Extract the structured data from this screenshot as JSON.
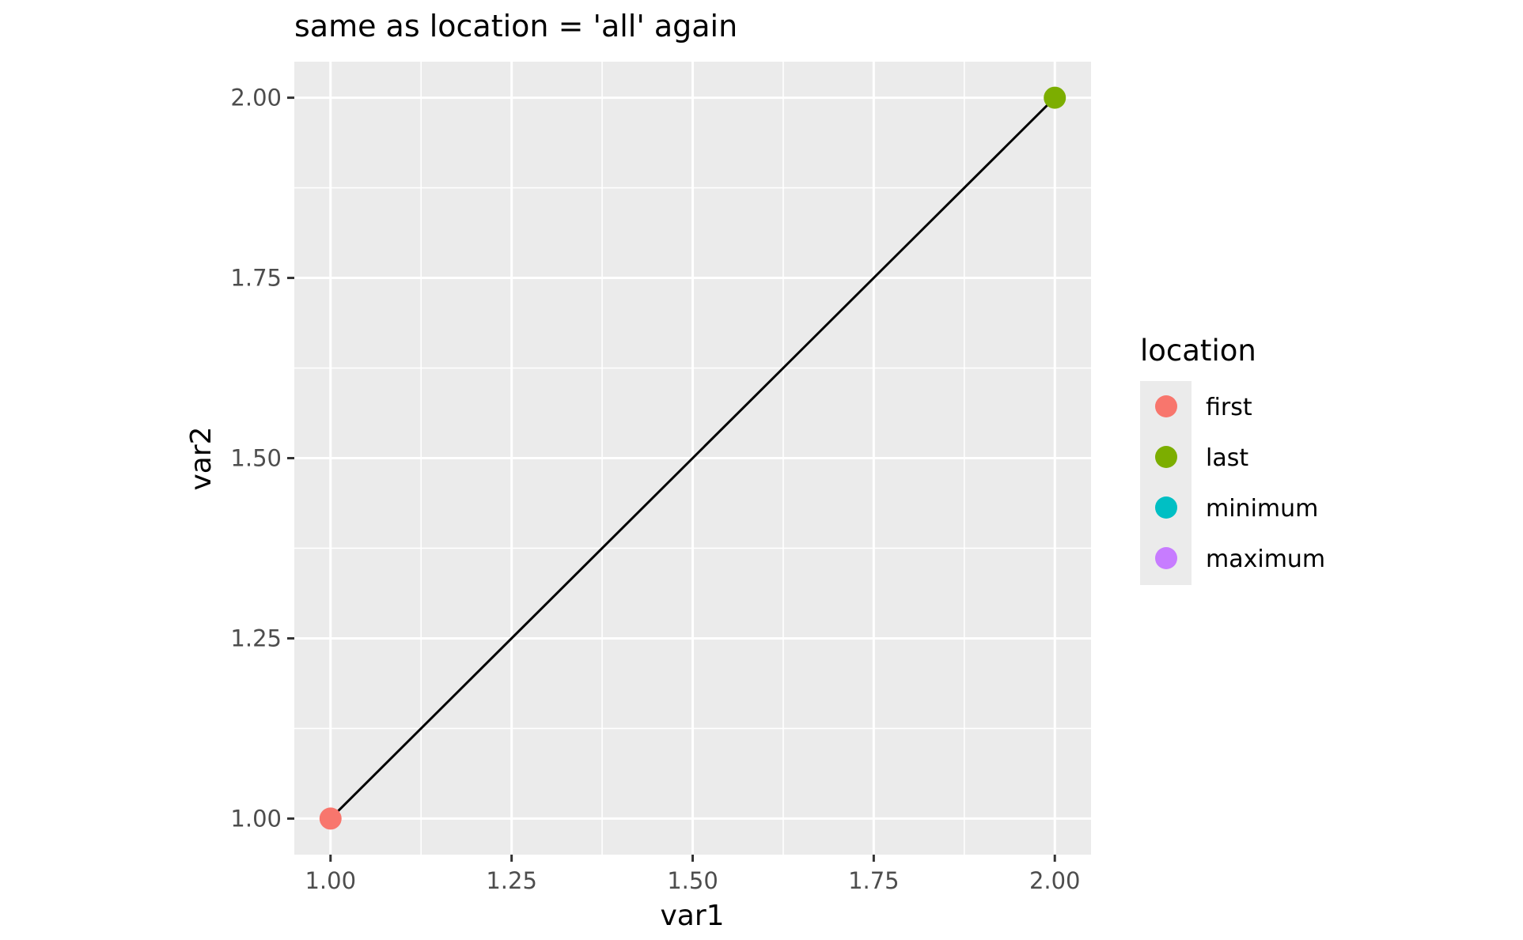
{
  "chart_data": {
    "type": "line",
    "title": "same as location = 'all' again",
    "xlabel": "var1",
    "ylabel": "var2",
    "xlim": [
      0.95,
      2.05
    ],
    "ylim": [
      0.95,
      2.05
    ],
    "x_ticks": [
      "1.00",
      "1.25",
      "1.50",
      "1.75",
      "2.00"
    ],
    "y_ticks": [
      "1.00",
      "1.25",
      "1.50",
      "1.75",
      "2.00"
    ],
    "grid": true,
    "line": {
      "x": [
        1.0,
        2.0
      ],
      "y": [
        1.0,
        2.0
      ],
      "color": "#000000"
    },
    "points": [
      {
        "x": 1.0,
        "y": 1.0,
        "location": "first",
        "color": "#F8766D"
      },
      {
        "x": 2.0,
        "y": 2.0,
        "location": "last",
        "color": "#7CAE00"
      }
    ],
    "legend": {
      "title": "location",
      "placement": "right",
      "items": [
        {
          "label": "first",
          "color": "#F8766D"
        },
        {
          "label": "last",
          "color": "#7CAE00"
        },
        {
          "label": "minimum",
          "color": "#00BFC4"
        },
        {
          "label": "maximum",
          "color": "#C77CFF"
        }
      ]
    },
    "colors": {
      "panel": "#EBEBEB",
      "grid": "#FFFFFF",
      "tick_text": "#4D4D4D"
    }
  }
}
